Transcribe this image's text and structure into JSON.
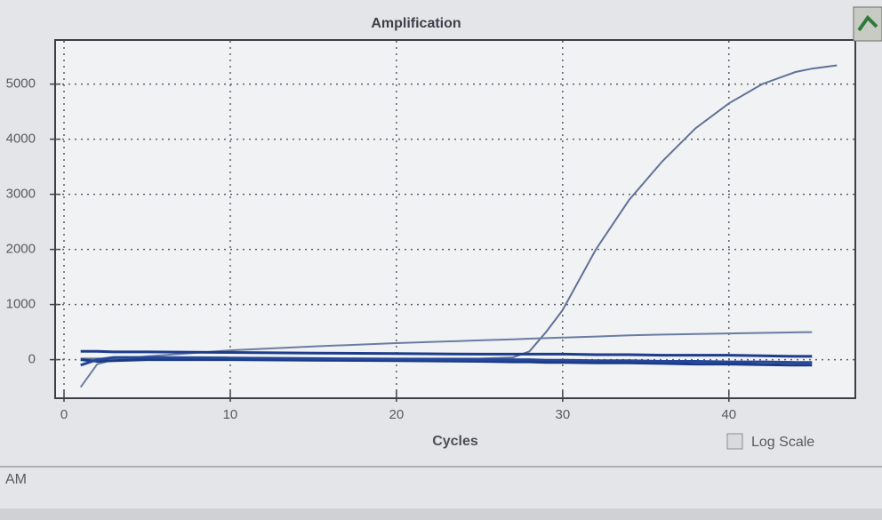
{
  "chart_data": {
    "type": "line",
    "title": "Amplification",
    "x_label": "Cycles",
    "x": [
      1,
      2,
      3,
      5,
      10,
      15,
      20,
      25,
      27,
      28,
      29,
      30,
      32,
      34,
      36,
      38,
      40,
      42,
      44,
      45,
      46.5
    ],
    "series": [
      {
        "color": "#5f7198",
        "values": [
          20,
          20,
          20,
          20,
          20,
          20,
          20,
          20,
          40,
          150,
          500,
          900,
          2000,
          2900,
          3600,
          4200,
          4650,
          5000,
          5220,
          5280,
          5340
        ]
      },
      {
        "color": "#6a7ca3",
        "values": [
          -500,
          -80,
          0,
          60,
          170,
          240,
          300,
          350,
          370,
          380,
          390,
          400,
          420,
          440,
          455,
          465,
          475,
          485,
          495,
          500,
          null
        ]
      },
      {
        "color": "#1d3d8c",
        "values": [
          150,
          150,
          140,
          140,
          130,
          120,
          110,
          100,
          100,
          100,
          100,
          100,
          90,
          90,
          80,
          80,
          80,
          70,
          60,
          60,
          null
        ]
      },
      {
        "color": "#1a3a86",
        "values": [
          0,
          -30,
          -20,
          0,
          0,
          -10,
          -20,
          -30,
          -40,
          -40,
          -50,
          -50,
          -60,
          -60,
          -70,
          -80,
          -80,
          -90,
          -100,
          -100,
          null
        ]
      },
      {
        "color": "#24479a",
        "values": [
          -100,
          0,
          40,
          40,
          30,
          20,
          10,
          0,
          0,
          0,
          -10,
          -10,
          -20,
          -20,
          -30,
          -30,
          -40,
          -40,
          -50,
          -50,
          null
        ]
      }
    ],
    "xlim": [
      0,
      47.5
    ],
    "xticks": [
      0,
      10,
      20,
      30,
      40
    ],
    "ylim": [
      -700,
      5800
    ],
    "yticks": [
      0,
      1000,
      2000,
      3000,
      4000,
      5000
    ],
    "grid": true,
    "log_scale": false,
    "log_scale_label": "Log Scale",
    "status_text": "AM"
  }
}
